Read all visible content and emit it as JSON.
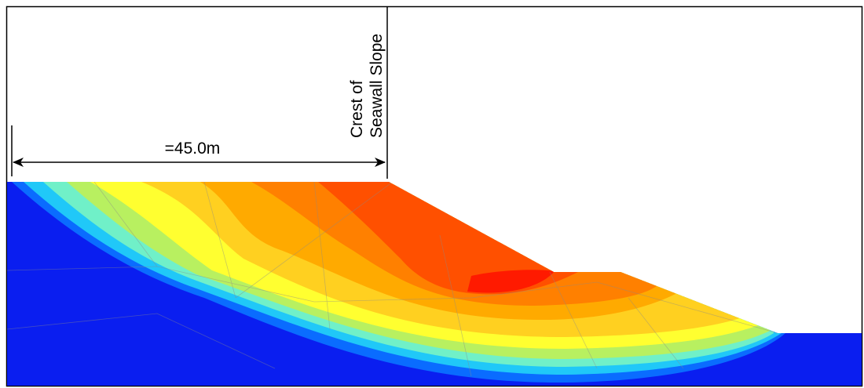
{
  "labels": {
    "crest_line1": "Crest of",
    "crest_line2": "Seawall Slope",
    "dimension": "=45.0m"
  }
}
